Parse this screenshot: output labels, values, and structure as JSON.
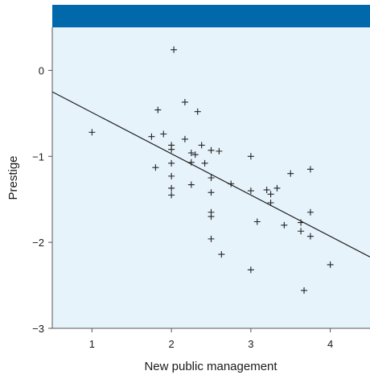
{
  "colors": {
    "header_band": "#0068ab",
    "plot_background": "#e6f3fb",
    "axis": "#555555",
    "marker": "#222222",
    "fit_line": "#222222"
  },
  "chart_data": {
    "type": "scatter",
    "title": "",
    "xlabel": "New public management",
    "ylabel": "Prestige",
    "xlim": [
      0.5,
      4.5
    ],
    "ylim": [
      -3.0,
      0.5
    ],
    "xticks": [
      1,
      2,
      3,
      4
    ],
    "yticks": [
      0,
      -1,
      -2,
      -3
    ],
    "xtick_labels": [
      "1",
      "2",
      "3",
      "4"
    ],
    "ytick_labels": [
      "0",
      "−1",
      "−2",
      "−3"
    ],
    "grid": false,
    "legend": "none",
    "marker": "plus",
    "points": [
      {
        "x": 1.0,
        "y": -0.72
      },
      {
        "x": 1.75,
        "y": -0.77
      },
      {
        "x": 1.8,
        "y": -1.13
      },
      {
        "x": 1.83,
        "y": -0.46
      },
      {
        "x": 1.9,
        "y": -0.74
      },
      {
        "x": 2.0,
        "y": -0.87
      },
      {
        "x": 2.0,
        "y": -0.92
      },
      {
        "x": 2.0,
        "y": -1.08
      },
      {
        "x": 2.0,
        "y": -1.23
      },
      {
        "x": 2.0,
        "y": -1.37
      },
      {
        "x": 2.0,
        "y": -1.45
      },
      {
        "x": 2.03,
        "y": 0.24
      },
      {
        "x": 2.17,
        "y": -0.37
      },
      {
        "x": 2.17,
        "y": -0.8
      },
      {
        "x": 2.25,
        "y": -0.96
      },
      {
        "x": 2.25,
        "y": -1.07
      },
      {
        "x": 2.25,
        "y": -1.33
      },
      {
        "x": 2.3,
        "y": -0.98
      },
      {
        "x": 2.33,
        "y": -0.48
      },
      {
        "x": 2.38,
        "y": -0.87
      },
      {
        "x": 2.42,
        "y": -1.08
      },
      {
        "x": 2.5,
        "y": -0.93
      },
      {
        "x": 2.5,
        "y": -1.25
      },
      {
        "x": 2.5,
        "y": -1.42
      },
      {
        "x": 2.5,
        "y": -1.65
      },
      {
        "x": 2.5,
        "y": -1.7
      },
      {
        "x": 2.5,
        "y": -1.96
      },
      {
        "x": 2.6,
        "y": -0.94
      },
      {
        "x": 2.63,
        "y": -2.14
      },
      {
        "x": 2.75,
        "y": -1.32
      },
      {
        "x": 3.0,
        "y": -1.0
      },
      {
        "x": 3.0,
        "y": -1.4
      },
      {
        "x": 3.0,
        "y": -2.32
      },
      {
        "x": 3.08,
        "y": -1.76
      },
      {
        "x": 3.2,
        "y": -1.39
      },
      {
        "x": 3.25,
        "y": -1.44
      },
      {
        "x": 3.25,
        "y": -1.54
      },
      {
        "x": 3.33,
        "y": -1.37
      },
      {
        "x": 3.42,
        "y": -1.8
      },
      {
        "x": 3.5,
        "y": -1.2
      },
      {
        "x": 3.63,
        "y": -1.77
      },
      {
        "x": 3.63,
        "y": -1.87
      },
      {
        "x": 3.67,
        "y": -2.56
      },
      {
        "x": 3.75,
        "y": -1.15
      },
      {
        "x": 3.75,
        "y": -1.65
      },
      {
        "x": 3.75,
        "y": -1.93
      },
      {
        "x": 4.0,
        "y": -2.26
      }
    ],
    "fit_line": {
      "x": [
        0.5,
        4.5
      ],
      "y": [
        -0.25,
        -2.17
      ]
    }
  }
}
